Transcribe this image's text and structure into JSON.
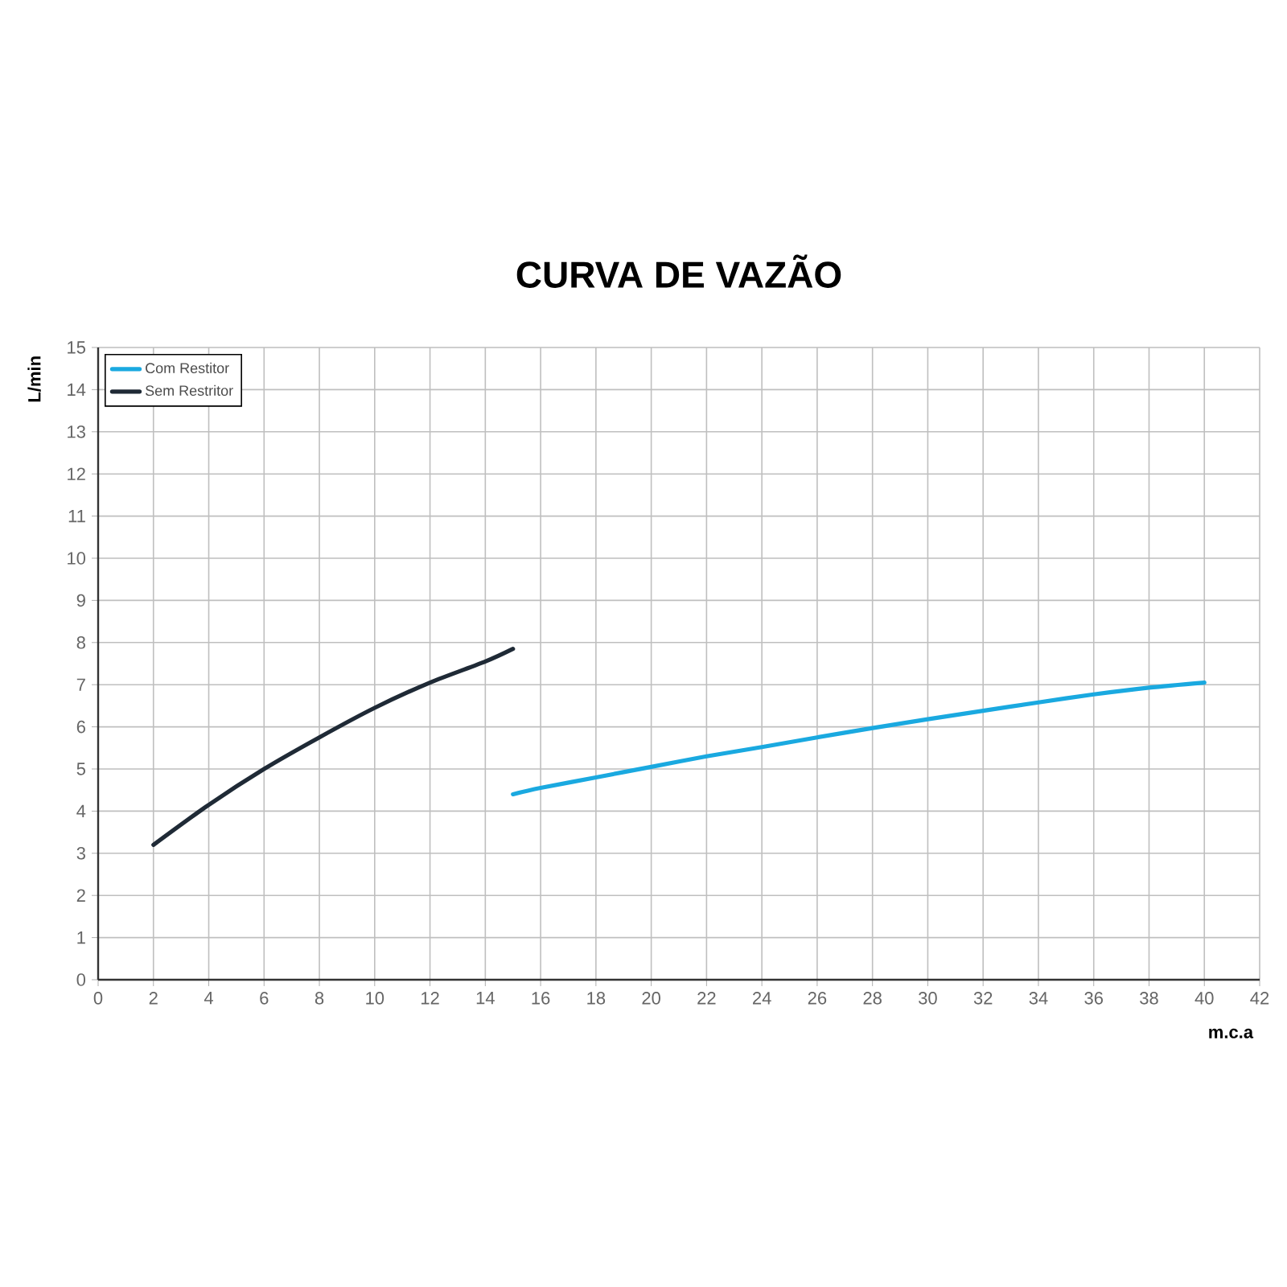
{
  "chart_data": {
    "type": "line",
    "title": "CURVA DE VAZÃO",
    "xlabel": "m.c.a",
    "ylabel": "L/min",
    "xlim": [
      0,
      42
    ],
    "xticks": [
      0,
      2,
      4,
      6,
      8,
      10,
      12,
      14,
      16,
      18,
      20,
      22,
      24,
      26,
      28,
      30,
      32,
      34,
      36,
      38,
      40,
      42
    ],
    "ylim": [
      0,
      15
    ],
    "yticks": [
      0,
      1,
      2,
      3,
      4,
      5,
      6,
      7,
      8,
      9,
      10,
      11,
      12,
      13,
      14,
      15
    ],
    "grid": true,
    "legend": "top left",
    "series": [
      {
        "name": "Com Restitor",
        "color": "#1aa9e0",
        "x": [
          15,
          16,
          18,
          20,
          22,
          24,
          26,
          28,
          30,
          32,
          34,
          36,
          38,
          40
        ],
        "values": [
          4.4,
          4.55,
          4.8,
          5.05,
          5.3,
          5.52,
          5.75,
          5.97,
          6.18,
          6.38,
          6.58,
          6.77,
          6.93,
          7.05
        ]
      },
      {
        "name": "Sem Restritor",
        "color": "#1f2a36",
        "x": [
          2,
          4,
          6,
          8,
          10,
          12,
          14,
          15
        ],
        "values": [
          3.2,
          4.15,
          5.0,
          5.75,
          6.45,
          7.05,
          7.55,
          7.85
        ]
      }
    ]
  }
}
